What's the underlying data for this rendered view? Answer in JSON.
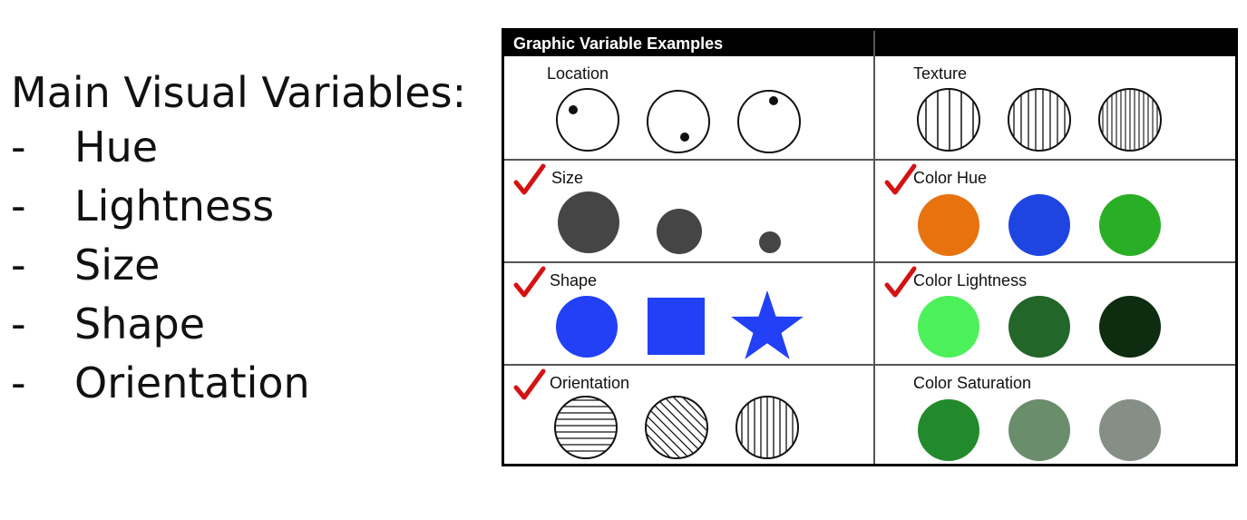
{
  "left": {
    "heading": "Main Visual Variables:",
    "items": [
      {
        "dash": "-",
        "text": "Hue"
      },
      {
        "dash": "-",
        "text": "Lightness"
      },
      {
        "dash": "-",
        "text": "Size"
      },
      {
        "dash": "-",
        "text": "Shape"
      },
      {
        "dash": "-",
        "text": "Orientation"
      }
    ]
  },
  "table": {
    "title": "Graphic Variable Examples",
    "cells": {
      "location": {
        "label": "Location",
        "checked": false
      },
      "texture": {
        "label": "Texture",
        "checked": false
      },
      "size": {
        "label": "Size",
        "checked": true
      },
      "color_hue": {
        "label": "Color Hue",
        "checked": true,
        "colors": [
          "#e8720e",
          "#1f45e0",
          "#2aae26"
        ]
      },
      "shape": {
        "label": "Shape",
        "checked": true,
        "color": "#2240f5"
      },
      "color_lightness": {
        "label": "Color Lightness",
        "checked": true,
        "colors": [
          "#4cf05a",
          "#22662a",
          "#0d2c10"
        ]
      },
      "orientation": {
        "label": "Orientation",
        "checked": true
      },
      "color_saturation": {
        "label": "Color Saturation",
        "checked": false,
        "colors": [
          "#228a2c",
          "#6a8e6c",
          "#858f85"
        ]
      }
    },
    "check_color": "#d41212",
    "size_color": "#454545"
  }
}
